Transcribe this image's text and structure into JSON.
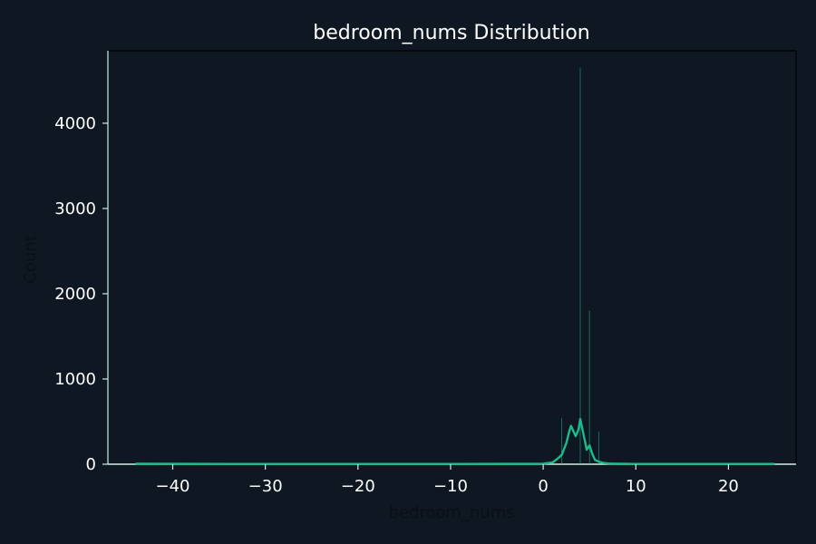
{
  "chart_data": {
    "type": "bar",
    "title": "bedroom_nums Distribution",
    "xlabel": "bedroom_nums",
    "ylabel": "Count",
    "xlim": [
      -47,
      27.3
    ],
    "ylim": [
      0,
      4850
    ],
    "xticks": [
      {
        "value": -40,
        "label": "−40"
      },
      {
        "value": -30,
        "label": "−30"
      },
      {
        "value": -20,
        "label": "−20"
      },
      {
        "value": -10,
        "label": "−10"
      },
      {
        "value": 0,
        "label": "0"
      },
      {
        "value": 10,
        "label": "10"
      },
      {
        "value": 20,
        "label": "20"
      }
    ],
    "yticks": [
      {
        "value": 0,
        "label": "0"
      },
      {
        "value": 1000,
        "label": "1000"
      },
      {
        "value": 2000,
        "label": "2000"
      },
      {
        "value": 3000,
        "label": "3000"
      },
      {
        "value": 4000,
        "label": "4000"
      }
    ],
    "bars": [
      {
        "x": 2,
        "count": 540
      },
      {
        "x": 4,
        "count": 4650
      },
      {
        "x": 5,
        "count": 1800
      },
      {
        "x": 6,
        "count": 380
      }
    ],
    "kde": {
      "x": [
        -44,
        -30,
        -20,
        -10,
        0,
        1,
        1.5,
        2,
        2.5,
        2.8,
        3,
        3.5,
        3.8,
        4,
        4.3,
        4.7,
        5,
        5.3,
        5.6,
        6,
        6.5,
        7,
        8,
        10,
        15,
        25
      ],
      "y": [
        5,
        3,
        3,
        3,
        5,
        20,
        60,
        110,
        250,
        380,
        450,
        330,
        400,
        530,
        380,
        170,
        220,
        120,
        50,
        30,
        15,
        8,
        5,
        3,
        3,
        3
      ]
    },
    "grid": false,
    "legend": "none",
    "colors": {
      "background": "#0f1722",
      "bar": "#1abc8c",
      "kde": "#1abc8c",
      "text": "#ffffff",
      "spine": "#000000",
      "bottom_spine": "#cfeee6",
      "axis_label": "#0b0f16"
    }
  }
}
